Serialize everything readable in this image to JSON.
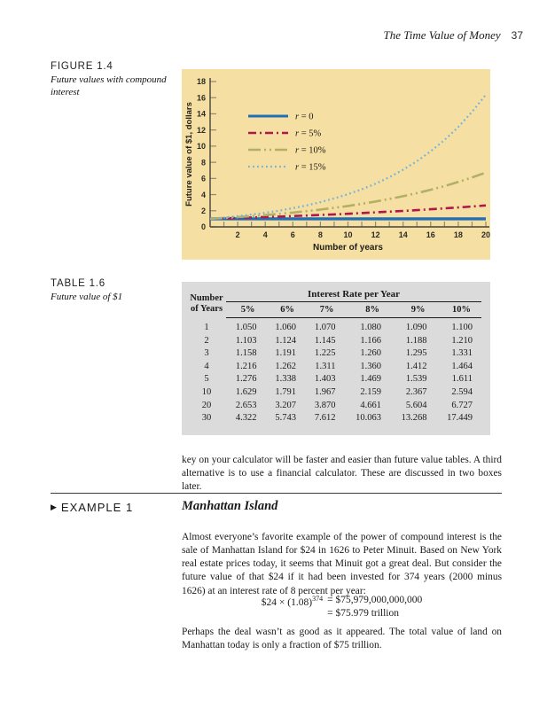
{
  "page": {
    "header_title": "The Time Value of Money",
    "page_number": "37"
  },
  "figure": {
    "label": "FIGURE 1.4",
    "caption": "Future values with compound interest"
  },
  "chart_data": {
    "type": "line",
    "title": "",
    "xlabel": "Number of years",
    "ylabel": "Future value of $1, dollars",
    "xlim": [
      0,
      20
    ],
    "ylim": [
      0,
      18
    ],
    "x_tick_step": 1,
    "x_label_step": 2,
    "y_tick_step": 2,
    "grid": "off",
    "legend_position": "upper-left-inside",
    "background_color": "#f6dfa2",
    "x": [
      0,
      1,
      2,
      3,
      4,
      5,
      6,
      7,
      8,
      9,
      10,
      11,
      12,
      13,
      14,
      15,
      16,
      17,
      18,
      19,
      20
    ],
    "series": [
      {
        "name": "r = 0",
        "color": "#1e6fb8",
        "dash": "solid",
        "width": 3.4,
        "values": [
          1,
          1,
          1,
          1,
          1,
          1,
          1,
          1,
          1,
          1,
          1,
          1,
          1,
          1,
          1,
          1,
          1,
          1,
          1,
          1,
          1
        ]
      },
      {
        "name": "r = 5%",
        "color": "#b0164c",
        "dash": "dashdot",
        "width": 2.6,
        "values": [
          1,
          1.05,
          1.103,
          1.158,
          1.216,
          1.276,
          1.34,
          1.407,
          1.477,
          1.551,
          1.629,
          1.71,
          1.796,
          1.886,
          1.98,
          2.079,
          2.183,
          2.292,
          2.407,
          2.527,
          2.653
        ]
      },
      {
        "name": "r = 10%",
        "color": "#b1b065",
        "dash": "dashdotdot",
        "width": 2.6,
        "values": [
          1,
          1.1,
          1.21,
          1.331,
          1.464,
          1.611,
          1.772,
          1.949,
          2.144,
          2.358,
          2.594,
          2.853,
          3.138,
          3.452,
          3.797,
          4.177,
          4.595,
          5.054,
          5.56,
          6.116,
          6.727
        ]
      },
      {
        "name": "r = 15%",
        "color": "#74b4da",
        "dash": "dotted",
        "width": 2.2,
        "values": [
          1,
          1.15,
          1.323,
          1.521,
          1.749,
          2.011,
          2.313,
          2.66,
          3.059,
          3.518,
          4.046,
          4.652,
          5.35,
          6.153,
          7.076,
          8.137,
          9.358,
          10.761,
          12.375,
          14.232,
          16.367
        ]
      }
    ]
  },
  "table": {
    "label": "TABLE 1.6",
    "caption": "Future value of $1",
    "row_header_line1": "Number",
    "row_header_line2": "of Years",
    "group_header": "Interest Rate per Year",
    "columns": [
      "5%",
      "6%",
      "7%",
      "8%",
      "9%",
      "10%"
    ],
    "rows": [
      {
        "years": "1",
        "values": [
          "1.050",
          "1.060",
          "1.070",
          "1.080",
          "1.090",
          "1.100"
        ]
      },
      {
        "years": "2",
        "values": [
          "1.103",
          "1.124",
          "1.145",
          "1.166",
          "1.188",
          "1.210"
        ]
      },
      {
        "years": "3",
        "values": [
          "1.158",
          "1.191",
          "1.225",
          "1.260",
          "1.295",
          "1.331"
        ]
      },
      {
        "years": "4",
        "values": [
          "1.216",
          "1.262",
          "1.311",
          "1.360",
          "1.412",
          "1.464"
        ]
      },
      {
        "years": "5",
        "values": [
          "1.276",
          "1.338",
          "1.403",
          "1.469",
          "1.539",
          "1.611"
        ]
      },
      {
        "years": "10",
        "values": [
          "1.629",
          "1.791",
          "1.967",
          "2.159",
          "2.367",
          "2.594"
        ]
      },
      {
        "years": "20",
        "values": [
          "2.653",
          "3.207",
          "3.870",
          "4.661",
          "5.604",
          "6.727"
        ]
      },
      {
        "years": "30",
        "values": [
          "4.322",
          "5.743",
          "7.612",
          "10.063",
          "13.268",
          "17.449"
        ]
      }
    ]
  },
  "body": {
    "paragraph": "key on your calculator will be faster and easier than future value tables. A third alternative is to use a financial calculator. These are discussed in two boxes later."
  },
  "example": {
    "marker": "▶",
    "label": "EXAMPLE 1",
    "title": "Manhattan Island",
    "paragraph1": "Almost everyone’s favorite example of the power of compound interest is the sale of Manhattan Island for $24 in 1626 to Peter Minuit. Based on New York real estate prices today, it seems that Minuit got a great deal. But consider the future value of that $24 if it had been invested for 374 years (2000 minus 1626) at an interest rate of 8 percent per year:",
    "formula_lhs": "$24 × (1.08)",
    "formula_exp": "374",
    "formula_rhs_line1": "= $75,979,000,000,000",
    "formula_rhs_line2": "= $75.979 trillion",
    "paragraph2": "Perhaps the deal wasn’t as good as it appeared. The total value of land on Manhattan today is only a fraction of $75 trillion."
  }
}
